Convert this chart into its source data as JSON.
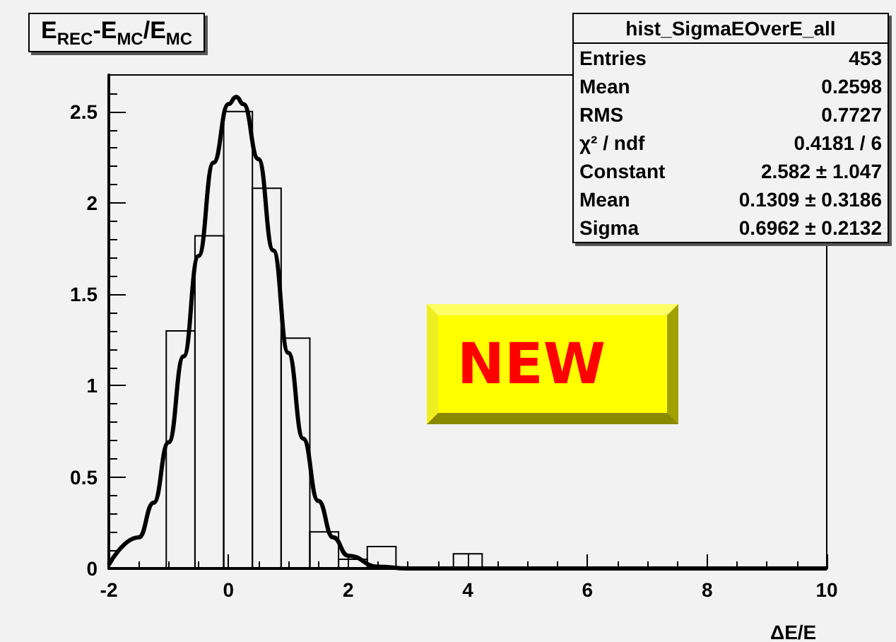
{
  "chart_data": {
    "type": "histogram",
    "title": "E$_{REC}$-E$_{MC}$/E$_{MC}$",
    "xlabel": "ΔE/E",
    "series": [
      {
        "color": "#000000",
        "bins": [
          -2,
          -1.52,
          -1.04,
          -0.56,
          -0.08,
          0.4,
          0.88,
          1.36,
          1.84,
          2.32,
          2.8,
          3.28,
          3.76,
          4.24,
          4.72,
          5.2,
          5.68,
          6.16,
          6.64,
          7.12,
          7.6,
          8.08,
          8.56,
          9.04,
          9.52,
          10
        ],
        "values": [
          0,
          0,
          1.3,
          1.82,
          2.5,
          2.08,
          1.26,
          0.2,
          0.05,
          0.12,
          0,
          0,
          0.08,
          0,
          0,
          0,
          0,
          0,
          0,
          0,
          0,
          0,
          0,
          0,
          0
        ]
      },
      {
        "type": "line",
        "color": "#000000",
        "x": [
          -2,
          -1.5,
          -1.25,
          -1,
          -0.75,
          -0.5,
          -0.25,
          0,
          0.13,
          0.25,
          0.5,
          0.75,
          1,
          1.25,
          1.5,
          1.75,
          2,
          2.5,
          3,
          10
        ],
        "values": [
          0.02,
          0.17,
          0.36,
          0.69,
          1.16,
          1.71,
          2.22,
          2.54,
          2.58,
          2.54,
          2.24,
          1.74,
          1.18,
          0.71,
          0.37,
          0.17,
          0.07,
          0.01,
          0,
          0
        ]
      }
    ],
    "xlim": [
      -2,
      10
    ],
    "xticks": [
      -2,
      0,
      2,
      4,
      6,
      8,
      10
    ],
    "ylim": [
      0,
      2.7
    ],
    "yticks": [
      0,
      0.5,
      1,
      1.5,
      2,
      2.5
    ],
    "grid": false,
    "marker": "none",
    "line_style": "solid",
    "annotations": [
      "hist_SigmaEOverE_all",
      "Entries",
      "453",
      "Mean",
      "0.2598",
      "RMS",
      "0.7727",
      "χ² / ndf",
      "0.4181 / 6",
      "Constant",
      "2.582 ± 1.047",
      "Mean",
      "0.1309 ± 0.3186",
      "Sigma",
      "0.6962 ± 0.2132",
      "NEW"
    ]
  }
}
